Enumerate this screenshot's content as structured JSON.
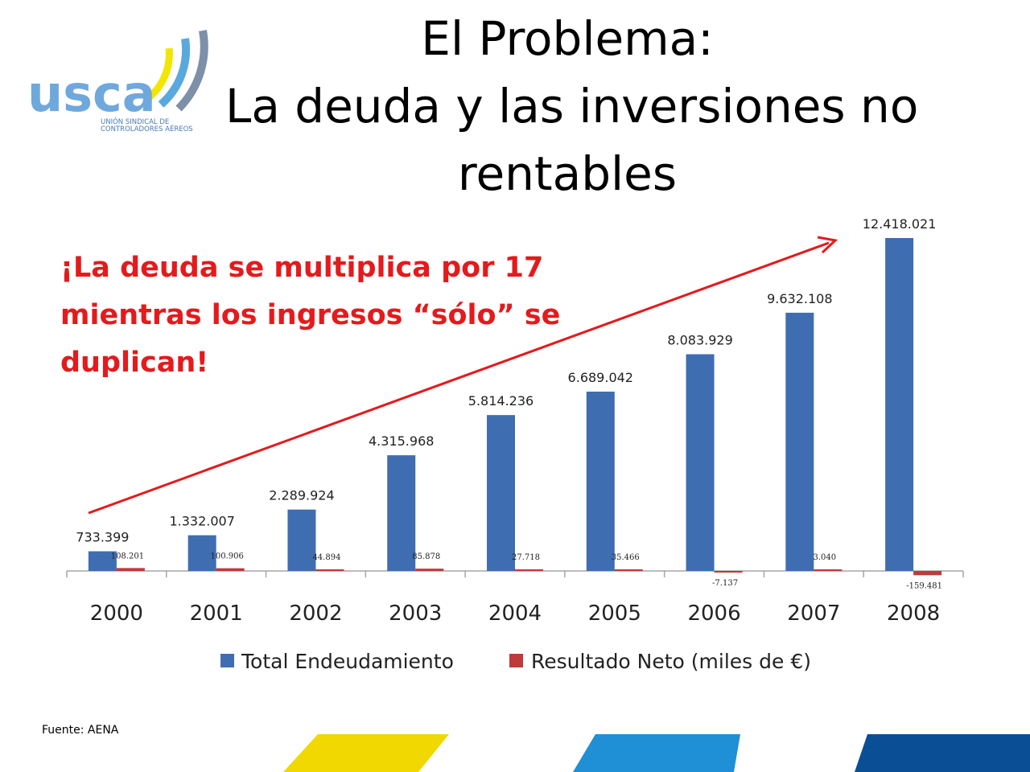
{
  "title": {
    "line1": "El Problema:",
    "line2": "La deuda y las inversiones no",
    "line3": "rentables"
  },
  "logo": {
    "word": "usca",
    "subtitle_line1": "UNIÓN SINDICAL DE",
    "subtitle_line2": "CONTROLADORES AÉREOS"
  },
  "callout": {
    "line1": "¡La deuda se multiplica por 17",
    "line2": "mientras los ingresos “sólo” se",
    "line3": "duplican!"
  },
  "source": "Fuente: AENA",
  "colors": {
    "series1": "#3f6db2",
    "series2": "#c0393b",
    "callout": "#e41a1c",
    "stripe_yellow": "#f0d800",
    "stripe_blue": "#1f8fd6",
    "stripe_navy": "#0a4f96"
  },
  "chart_data": {
    "type": "bar",
    "categories": [
      "2000",
      "2001",
      "2002",
      "2003",
      "2004",
      "2005",
      "2006",
      "2007",
      "2008"
    ],
    "series": [
      {
        "name": "Total Endeudamiento",
        "values": [
          733399,
          1332007,
          2289924,
          4315968,
          5814236,
          6689042,
          8083929,
          9632108,
          12418021
        ],
        "labels": [
          "733.399",
          "1.332.007",
          "2.289.924",
          "4.315.968",
          "5.814.236",
          "6.689.042",
          "8.083.929",
          "9.632.108",
          "12.418.021"
        ]
      },
      {
        "name": "Resultado Neto (miles de €)",
        "values": [
          108201,
          100906,
          44894,
          85878,
          27718,
          35466,
          -7137,
          3040,
          -159481
        ],
        "labels": [
          "108.201",
          "100.906",
          "44.894",
          "85.878",
          "27.718",
          "35.466",
          "-7.137",
          "3.040",
          "-159.481"
        ]
      }
    ],
    "legend_position": "bottom",
    "grid": false,
    "annotation": "trend arrow from 2000 to 2008"
  }
}
